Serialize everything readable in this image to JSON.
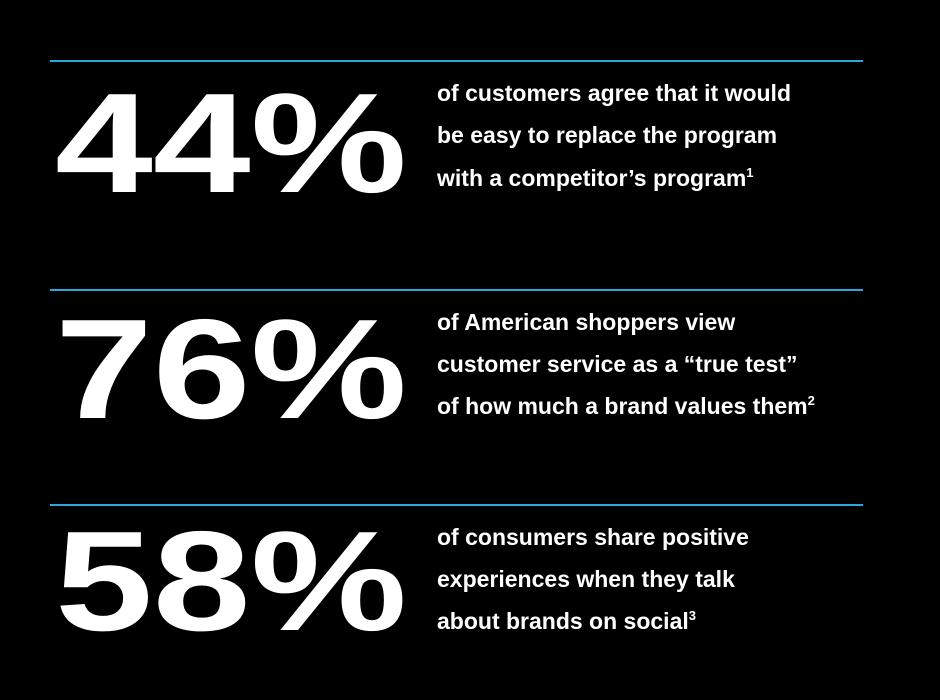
{
  "stats": [
    {
      "value": "44%",
      "lines": [
        "of customers agree that it would",
        "be easy to replace the program",
        "with a competitor’s program"
      ],
      "note": "1"
    },
    {
      "value": "76%",
      "lines": [
        "of American shoppers view",
        "customer service as a “true test”",
        "of how much a brand values them"
      ],
      "note": "2"
    },
    {
      "value": "58%",
      "lines": [
        "of consumers share positive",
        "experiences when they talk",
        "about brands on social"
      ],
      "note": "3"
    }
  ]
}
